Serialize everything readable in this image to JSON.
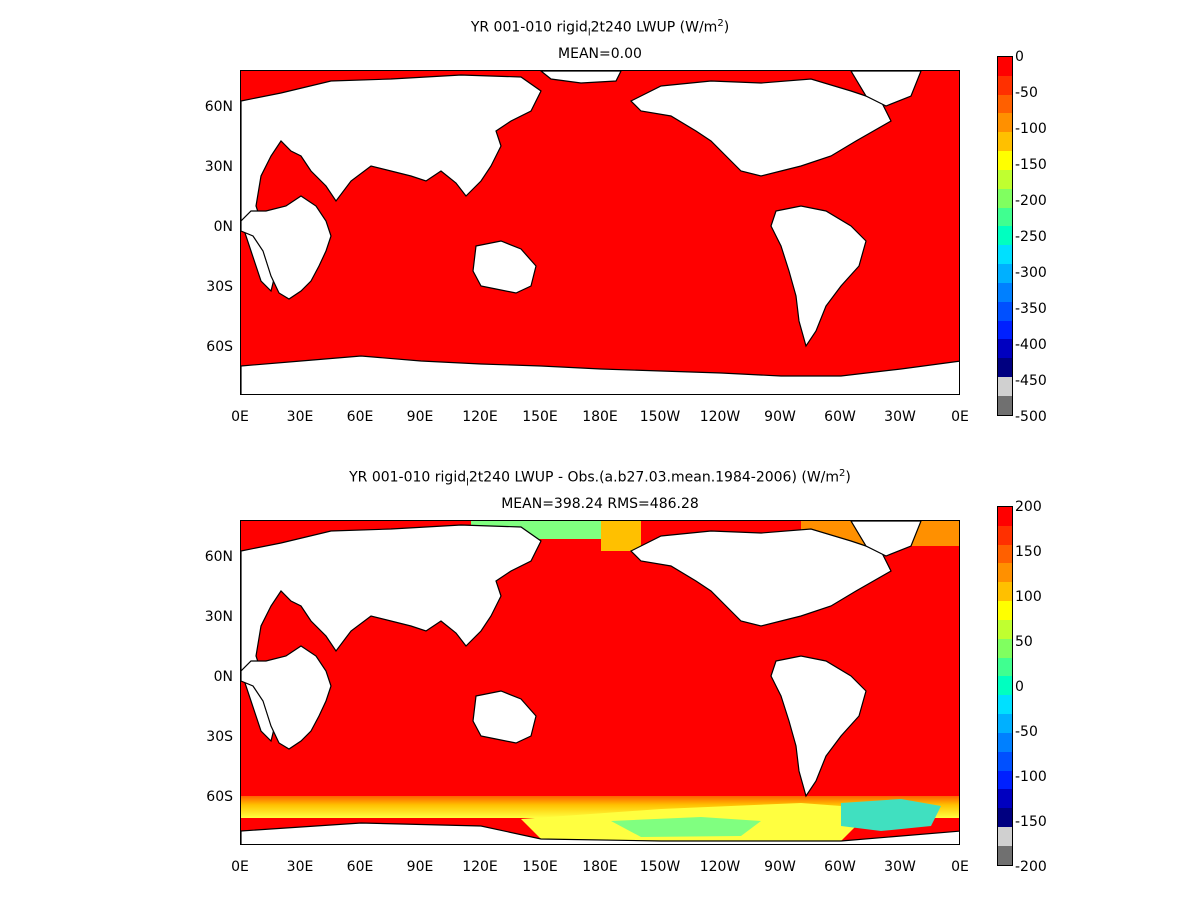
{
  "panels": [
    {
      "title_main": "YR 001-010 rigid",
      "title_sub": "l",
      "title_rest": "2t240  LWUP (W/m",
      "title_sup": "2",
      "title_end": ")",
      "stats": "MEAN=0.00",
      "lat_labels": [
        "60N",
        "30N",
        "0N",
        "30S",
        "60S"
      ],
      "lon_labels": [
        "0E",
        "30E",
        "60E",
        "90E",
        "120E",
        "150E",
        "180E",
        "150W",
        "120W",
        "90W",
        "60W",
        "30W",
        "0E"
      ],
      "colorbar_labels": [
        "0",
        "-50",
        "-100",
        "-150",
        "-200",
        "-250",
        "-300",
        "-350",
        "-400",
        "-450",
        "-500"
      ],
      "colorbar_colors": [
        "#ff0000",
        "#ff3000",
        "#ff6000",
        "#ff9000",
        "#ffc000",
        "#ffff00",
        "#c0ff30",
        "#80ff60",
        "#40ff90",
        "#00ffc0",
        "#00e0ff",
        "#00b0ff",
        "#0080ff",
        "#0050ff",
        "#0020ff",
        "#0000c0",
        "#000080",
        "#d0d0d0",
        "#707070"
      ],
      "ocean_fill": "#ff0000"
    },
    {
      "title_main": "YR 001-010 rigid",
      "title_sub": "l",
      "title_rest": "2t240 LWUP - Obs.(a.b27.03.mean.1984-2006) (W/m",
      "title_sup": "2",
      "title_end": ")",
      "stats": "MEAN=398.24 RMS=486.28",
      "lat_labels": [
        "60N",
        "30N",
        "0N",
        "30S",
        "60S"
      ],
      "lon_labels": [
        "0E",
        "30E",
        "60E",
        "90E",
        "120E",
        "150E",
        "180E",
        "150W",
        "120W",
        "90W",
        "60W",
        "30W",
        "0E"
      ],
      "colorbar_labels": [
        "200",
        "150",
        "100",
        "50",
        "0",
        "-50",
        "-100",
        "-150",
        "-200"
      ],
      "colorbar_colors": [
        "#ff0000",
        "#ff3000",
        "#ff6000",
        "#ff9000",
        "#ffc000",
        "#ffff00",
        "#c0ff30",
        "#80ff60",
        "#40ff90",
        "#00ffc0",
        "#00e0ff",
        "#00b0ff",
        "#0080ff",
        "#0050ff",
        "#0020ff",
        "#0000c0",
        "#000080",
        "#d0d0d0",
        "#707070"
      ],
      "ocean_fill": "#ff0000",
      "polar_highlight": [
        "#ffff40",
        "#80ff80",
        "#40e0c0",
        "#ff9000"
      ]
    }
  ]
}
